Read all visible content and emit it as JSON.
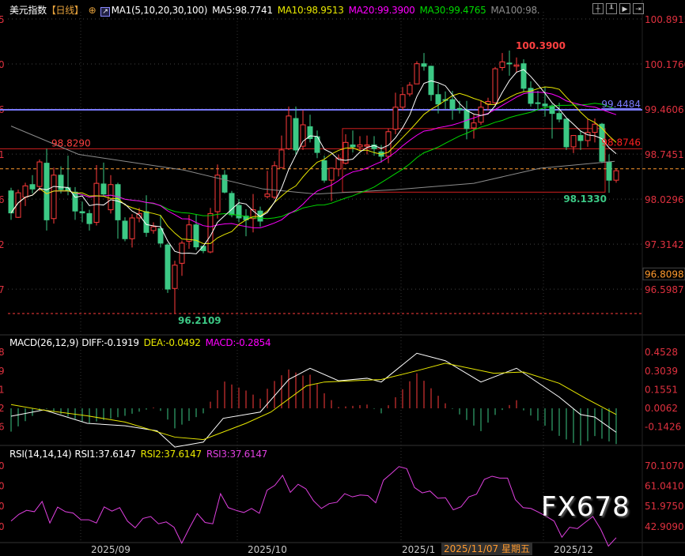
{
  "header": {
    "title": "美元指数",
    "period": "【日线】",
    "indicator": "MA1(5,10,20,30,100)",
    "ma5": "MA5:98.7741",
    "ma10": "MA10:98.9513",
    "ma20": "MA20:99.3900",
    "ma30": "MA30:99.4765",
    "ma100": "MA100:98.",
    "toolbar_icons": [
      "crosshair-icon",
      "axis-icon",
      "play-axis-icon",
      "exit-icon"
    ]
  },
  "macd_legend": {
    "name": "MACD(26,12,9)",
    "diff": "DIFF:-0.1919",
    "dea": "DEA:-0.0492",
    "macd": "MACD:-0.2854"
  },
  "rsi_legend": {
    "name": "RSI(14,14,14)",
    "rsi1": "RSI1:37.6147",
    "rsi2": "RSI2:37.6147",
    "rsi3": "RSI3:37.6147"
  },
  "watermark": "FX678",
  "colors": {
    "up": "#ff3b3b",
    "down": "#3cc985",
    "ma5": "#ffffff",
    "ma10": "#e8e800",
    "ma20": "#ff00ff",
    "ma30": "#00d800",
    "ma100": "#8c8c8c",
    "axis_text": "#e0313f",
    "blue_line": "#7b7bff",
    "current": "#ff9a2e",
    "rsi": "#e040e0"
  },
  "xaxis": {
    "labels": [
      {
        "text": "2025/09",
        "index": 11
      },
      {
        "text": "2025/10",
        "index": 33
      },
      {
        "text": "2025/1",
        "index": 56
      },
      {
        "text": "2025/12",
        "index": 76
      }
    ],
    "crosshair_label": "2025/11/07 星期五"
  },
  "chart_data": [
    {
      "type": "candlestick",
      "panel": "main",
      "ylim": [
        96.05,
        101.05
      ],
      "yticks": [
        "100.8915",
        "100.1760",
        "99.4606",
        "98.7451",
        "98.0296",
        "97.3142",
        "96.5987"
      ],
      "left_cut_ticks": [
        "5",
        "0",
        "6",
        "1",
        "6",
        "2",
        "7"
      ],
      "price_tag": "96.8098",
      "candles_ochl": [
        [
          98.16,
          97.81,
          98.21,
          97.7
        ],
        [
          97.74,
          98.13,
          98.18,
          97.73
        ],
        [
          98.06,
          98.24,
          98.29,
          97.92
        ],
        [
          98.26,
          98.19,
          98.41,
          98.12
        ],
        [
          98.23,
          98.62,
          98.66,
          98.16
        ],
        [
          98.6,
          97.7,
          98.83,
          97.53
        ],
        [
          97.72,
          98.41,
          98.53,
          97.64
        ],
        [
          98.41,
          98.18,
          98.55,
          98.12
        ],
        [
          98.21,
          98.16,
          98.72,
          98.09
        ],
        [
          98.14,
          97.84,
          98.22,
          97.7
        ],
        [
          97.83,
          97.81,
          97.99,
          97.66
        ],
        [
          97.8,
          97.64,
          97.86,
          97.53
        ],
        [
          97.66,
          98.28,
          98.57,
          97.61
        ],
        [
          98.27,
          98.11,
          98.61,
          98.07
        ],
        [
          97.86,
          98.26,
          98.41,
          97.8
        ],
        [
          98.26,
          97.7,
          98.29,
          97.4
        ],
        [
          97.68,
          97.4,
          97.74,
          97.36
        ],
        [
          97.4,
          97.73,
          97.79,
          97.26
        ],
        [
          97.73,
          97.8,
          97.89,
          97.66
        ],
        [
          97.83,
          97.5,
          98.09,
          97.43
        ],
        [
          97.53,
          97.59,
          97.66,
          97.48
        ],
        [
          97.56,
          97.33,
          97.78,
          97.26
        ],
        [
          97.3,
          96.6,
          97.33,
          96.54
        ],
        [
          96.61,
          96.98,
          97.05,
          96.21
        ],
        [
          97.01,
          97.33,
          97.37,
          96.81
        ],
        [
          97.36,
          97.62,
          97.78,
          97.24
        ],
        [
          97.62,
          97.27,
          97.78,
          97.22
        ],
        [
          97.28,
          97.21,
          97.29,
          97.17
        ],
        [
          97.19,
          97.8,
          97.89,
          97.17
        ],
        [
          97.83,
          98.41,
          98.58,
          97.72
        ],
        [
          98.41,
          98.14,
          98.49,
          98.12
        ],
        [
          98.12,
          97.78,
          98.16,
          97.74
        ],
        [
          97.93,
          97.73,
          98.03,
          97.66
        ],
        [
          97.76,
          97.7,
          97.87,
          97.44
        ],
        [
          97.72,
          97.86,
          98.11,
          97.5
        ],
        [
          97.84,
          97.68,
          97.91,
          97.59
        ],
        [
          98.07,
          98.11,
          98.48,
          98.04
        ],
        [
          98.06,
          98.56,
          98.63,
          98.03
        ],
        [
          98.53,
          98.81,
          99.04,
          98.53
        ],
        [
          98.83,
          99.35,
          99.5,
          98.81
        ],
        [
          99.31,
          98.81,
          99.5,
          98.74
        ],
        [
          98.87,
          99.21,
          99.44,
          98.81
        ],
        [
          99.18,
          98.99,
          99.37,
          98.93
        ],
        [
          99.02,
          98.77,
          99.12,
          98.68
        ],
        [
          98.64,
          98.33,
          98.72,
          98.29
        ],
        [
          98.33,
          98.52,
          98.53,
          98.0
        ],
        [
          98.51,
          98.68,
          98.74,
          98.39
        ],
        [
          98.6,
          98.93,
          99.06,
          98.58
        ],
        [
          98.89,
          98.86,
          99.12,
          98.77
        ],
        [
          98.86,
          98.89,
          99.03,
          98.79
        ],
        [
          98.87,
          98.89,
          99.04,
          98.74
        ],
        [
          98.89,
          98.83,
          99.03,
          98.72
        ],
        [
          98.78,
          98.71,
          98.89,
          98.61
        ],
        [
          98.71,
          99.1,
          99.15,
          98.6
        ],
        [
          99.14,
          99.49,
          99.72,
          99.06
        ],
        [
          99.49,
          99.69,
          99.81,
          99.44
        ],
        [
          99.7,
          99.84,
          99.89,
          99.66
        ],
        [
          99.86,
          100.18,
          100.22,
          99.86
        ],
        [
          100.18,
          100.14,
          100.35,
          100.07
        ],
        [
          100.14,
          99.69,
          100.15,
          99.59
        ],
        [
          99.69,
          99.54,
          99.86,
          99.39
        ],
        [
          99.61,
          99.6,
          99.74,
          99.46
        ],
        [
          99.61,
          99.46,
          99.75,
          99.29
        ],
        [
          99.47,
          99.45,
          99.59,
          99.39
        ],
        [
          99.44,
          99.15,
          99.59,
          98.98
        ],
        [
          99.16,
          99.24,
          99.37,
          98.99
        ],
        [
          99.25,
          99.49,
          99.59,
          99.21
        ],
        [
          99.54,
          99.58,
          99.64,
          99.44
        ],
        [
          99.56,
          100.1,
          100.13,
          99.5
        ],
        [
          100.12,
          100.21,
          100.35,
          100.07
        ],
        [
          100.19,
          100.18,
          100.39,
          99.99
        ],
        [
          100.14,
          100.16,
          100.28,
          100.04
        ],
        [
          100.18,
          99.79,
          100.25,
          99.74
        ],
        [
          99.79,
          99.55,
          99.9,
          99.5
        ],
        [
          99.56,
          99.55,
          99.75,
          99.46
        ],
        [
          99.54,
          99.51,
          99.81,
          99.34
        ],
        [
          99.51,
          99.39,
          99.54,
          98.99
        ],
        [
          99.39,
          99.3,
          99.56,
          99.25
        ],
        [
          99.3,
          98.86,
          99.31,
          98.81
        ],
        [
          98.86,
          99.04,
          99.04,
          98.76
        ],
        [
          99.04,
          98.96,
          99.12,
          98.81
        ],
        [
          98.96,
          99.09,
          99.31,
          98.86
        ],
        [
          99.09,
          99.22,
          99.31,
          98.93
        ],
        [
          99.22,
          98.63,
          99.24,
          98.6
        ],
        [
          98.62,
          98.33,
          98.74,
          98.13
        ],
        [
          98.33,
          98.48,
          98.51,
          98.29
        ]
      ],
      "ma100_points": [
        [
          1,
          99.19
        ],
        [
          10.5,
          98.74
        ],
        [
          25.3,
          98.49
        ],
        [
          36.4,
          98.19
        ],
        [
          43.9,
          98.11
        ],
        [
          55,
          98.18
        ],
        [
          66,
          98.28
        ],
        [
          75.3,
          98.52
        ],
        [
          85.8,
          98.63
        ]
      ],
      "annotations": {
        "blue_line": {
          "value": 99.4484,
          "label": "99.4484"
        },
        "red_line": {
          "value": 98.829,
          "label_left": "98.8290",
          "label_right": "98.8746"
        },
        "current_price_line": 98.51,
        "low_line": {
          "value": 96.2109,
          "label": "96.2109",
          "index": 24
        },
        "high_label": {
          "value": 100.39,
          "label": "100.3900",
          "index": 71
        },
        "recent_low_label": {
          "value": 98.133,
          "label": "98.1330",
          "index": 85
        },
        "box": {
          "from_index": 48,
          "to_index": 84,
          "top": 99.15,
          "bottom": 98.14
        }
      }
    },
    {
      "type": "line+bar",
      "panel": "macd",
      "yticks": [
        "0.4528",
        "0.3039",
        "0.1551",
        "0.0062",
        "-0.1426"
      ],
      "left_cut_ticks": [
        "8",
        "9",
        "1",
        "2",
        "6"
      ],
      "diff_points": [
        [
          1,
          -0.063
        ],
        [
          5.6,
          -0.013
        ],
        [
          11.7,
          -0.12
        ],
        [
          17,
          -0.14
        ],
        [
          21.5,
          -0.18
        ],
        [
          24,
          -0.31
        ],
        [
          28,
          -0.27
        ],
        [
          30.8,
          -0.08
        ],
        [
          36,
          -0.03
        ],
        [
          40,
          0.23
        ],
        [
          43,
          0.32
        ],
        [
          47,
          0.22
        ],
        [
          51,
          0.24
        ],
        [
          53,
          0.21
        ],
        [
          58,
          0.44
        ],
        [
          62,
          0.38
        ],
        [
          67,
          0.21
        ],
        [
          72,
          0.32
        ],
        [
          78,
          0.09
        ],
        [
          81,
          -0.05
        ],
        [
          83,
          -0.07
        ],
        [
          86,
          -0.1919
        ]
      ],
      "dea_points": [
        [
          1,
          0.03
        ],
        [
          5,
          -0.01
        ],
        [
          11.7,
          -0.06
        ],
        [
          17,
          -0.11
        ],
        [
          24,
          -0.23
        ],
        [
          28,
          -0.25
        ],
        [
          34,
          -0.12
        ],
        [
          37.5,
          -0.03
        ],
        [
          42.5,
          0.18
        ],
        [
          45,
          0.21
        ],
        [
          53,
          0.23
        ],
        [
          58,
          0.3
        ],
        [
          62,
          0.36
        ],
        [
          68.8,
          0.28
        ],
        [
          73,
          0.29
        ],
        [
          78,
          0.2
        ],
        [
          81.7,
          0.08
        ],
        [
          86,
          -0.0492
        ]
      ]
    },
    {
      "type": "line",
      "panel": "rsi",
      "yticks": [
        "70.1070",
        "61.0410",
        "51.9750",
        "42.9090"
      ],
      "left_cut_ticks": [
        "0",
        "0",
        "0",
        "0"
      ],
      "values": [
        45.05,
        48.06,
        49.87,
        49.26,
        53.84,
        44.2,
        51.31,
        49.26,
        48.66,
        45.65,
        45.65,
        44.2,
        51.43,
        49.5,
        51.07,
        45.05,
        42.04,
        46.25,
        47.1,
        43.84,
        44.69,
        42.28,
        35.17,
        42.04,
        48.42,
        44.44,
        43.84,
        57.33,
        51.07,
        49.87,
        48.9,
        50.71,
        48.54,
        58.9,
        61.06,
        65.52,
        57.93,
        61.54,
        59.5,
        54.08,
        50.71,
        52.87,
        53.48,
        57.33,
        55.89,
        56.73,
        56.49,
        53.24,
        63.35,
        66.36,
        69.49,
        68.53,
        60.1,
        57.69,
        58.53,
        55.28,
        55.52,
        50.11,
        51.43,
        55.89,
        57.09,
        63.71,
        65.16,
        64.31,
        64.31,
        54.68,
        51.07,
        50.71,
        49.02,
        47.1,
        45.05,
        37.82,
        42.28,
        41.68,
        44.44,
        47.1,
        41.44,
        33.85,
        37.6147
      ]
    }
  ]
}
